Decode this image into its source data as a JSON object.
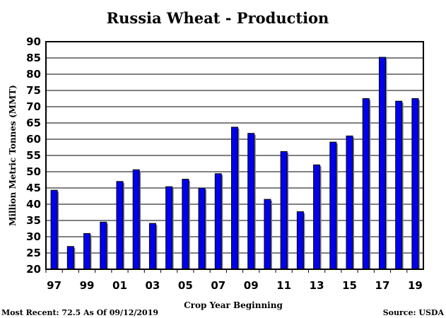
{
  "chart_data": {
    "type": "bar",
    "title": "Russia Wheat - Production",
    "xlabel": "Crop Year Beginning",
    "ylabel": "Million Metric Tonnes  (MMT)",
    "ylim": [
      20,
      90
    ],
    "yticks": [
      20,
      25,
      30,
      35,
      40,
      45,
      50,
      55,
      60,
      65,
      70,
      75,
      80,
      85,
      90
    ],
    "grid": true,
    "bar_color": "#0000ee",
    "categories": [
      "97",
      "98",
      "99",
      "00",
      "01",
      "02",
      "03",
      "04",
      "05",
      "06",
      "07",
      "08",
      "09",
      "10",
      "11",
      "12",
      "13",
      "14",
      "15",
      "16",
      "17",
      "18",
      "19"
    ],
    "tick_labels": [
      "97",
      "",
      "99",
      "",
      "01",
      "",
      "03",
      "",
      "05",
      "",
      "07",
      "",
      "09",
      "",
      "11",
      "",
      "13",
      "",
      "15",
      "",
      "17",
      "",
      "19"
    ],
    "values": [
      44.3,
      27.0,
      31.0,
      34.5,
      47.0,
      50.6,
      34.1,
      45.4,
      47.7,
      45.0,
      49.4,
      63.7,
      61.8,
      41.5,
      56.2,
      37.7,
      52.1,
      59.1,
      61.0,
      72.5,
      85.2,
      71.7,
      72.5
    ]
  },
  "footer": {
    "left": "Most Recent: 72.5 As Of 09/12/2019",
    "right": "Source: USDA"
  }
}
